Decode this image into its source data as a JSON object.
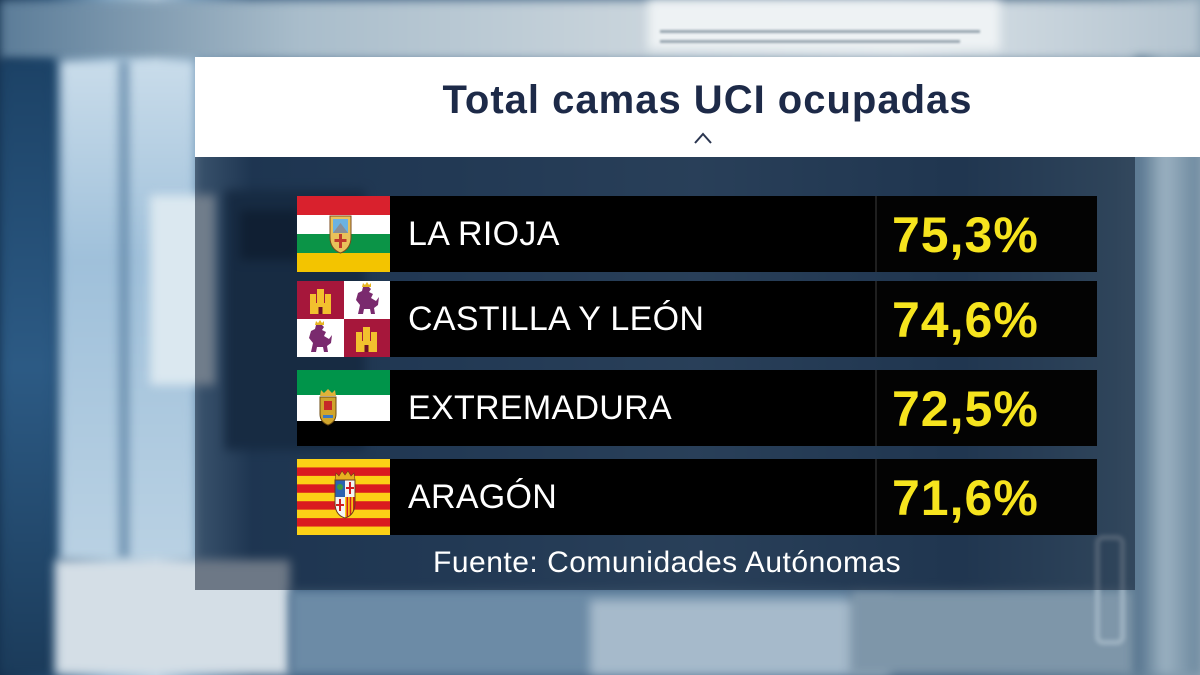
{
  "colors": {
    "banner_background": "#ffffff",
    "title_text": "#1d2a48",
    "row_background": "#000000",
    "value_text": "#f6e41e",
    "source_text": "#ffffff"
  },
  "header": {
    "toggle_icon": "chevron-up-icon"
  },
  "chart_data": {
    "type": "table",
    "title": "Total camas UCI ocupadas",
    "categories": [
      "LA RIOJA",
      "CASTILLA Y LEÓN",
      "EXTREMADURA",
      "ARAGÓN"
    ],
    "values": [
      75.3,
      74.6,
      72.5,
      71.6
    ],
    "value_labels": [
      "75,3%",
      "74,6%",
      "72,5%",
      "71,6%"
    ],
    "category_flags": [
      "la-rioja-flag-icon",
      "castilla-y-leon-flag-icon",
      "extremadura-flag-icon",
      "aragon-flag-icon"
    ],
    "source": "Fuente: Comunidades Autónomas"
  }
}
